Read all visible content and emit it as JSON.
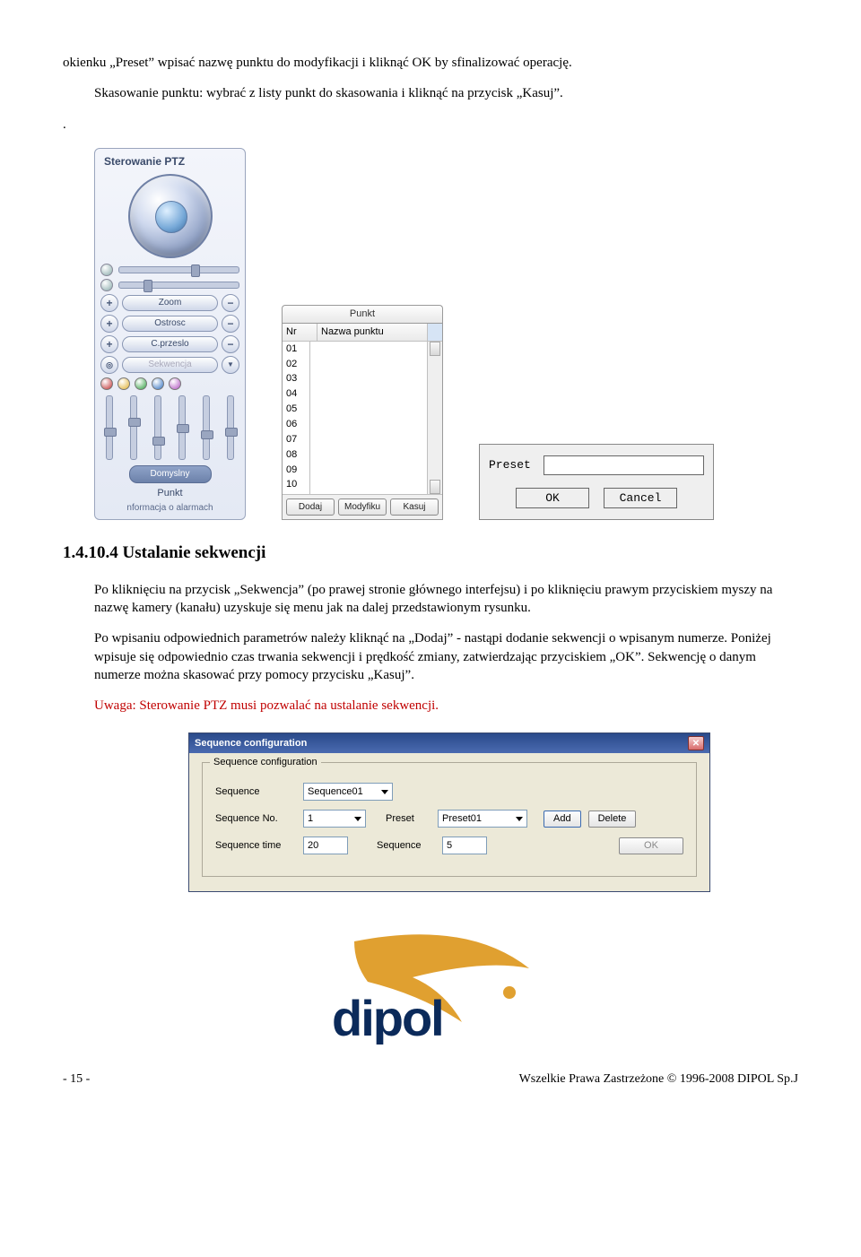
{
  "text": {
    "intro1": "okienku „Preset” wpisać nazwę punktu do modyfikacji i kliknąć OK by sfinalizować operację.",
    "intro2": "Skasowanie punktu: wybrać z listy punkt do skasowania i kliknąć na przycisk „Kasuj”.",
    "dot": ".",
    "heading": "1.4.10.4    Ustalanie sekwencji",
    "body1": "Po kliknięciu na przycisk „Sekwencja” (po prawej stronie głównego interfejsu) i po kliknięciu prawym przyciskiem myszy na nazwę kamery (kanału) uzyskuje się menu jak na dalej przedstawionym rysunku.",
    "body2": "Po wpisaniu odpowiednich parametrów należy kliknąć na „Dodaj” - nastąpi dodanie sekwencji o wpisanym numerze. Poniżej wpisuje się odpowiednio czas trwania sekwencji i prędkość zmiany, zatwierdzając przyciskiem „OK”. Sekwencję o danym numerze można skasować przy pomocy przycisku „Kasuj”.",
    "warn": "Uwaga: Sterowanie PTZ musi pozwalać na ustalanie sekwencji.",
    "footer_left": "- 15 -",
    "footer_right": "Wszelkie Prawa Zastrzeżone © 1996-2008 DIPOL Sp.J"
  },
  "ptz": {
    "title": "Sterowanie PTZ",
    "zoom": "Zoom",
    "ostrosc": "Ostrosc",
    "przeslo": "C.przeslo",
    "sekwencja": "Sekwencja",
    "domyslny": "Domyslny",
    "punkt": "Punkt",
    "alarm": "nformacja o alarmach",
    "slider1_pos": "60%",
    "slider2_pos": "20%",
    "dot_colors": [
      "#c03030",
      "#e0b030",
      "#30a040",
      "#3070c0",
      "#b050c0"
    ],
    "vslider_offsets": [
      "50%",
      "35%",
      "65%",
      "45%",
      "55%",
      "50%"
    ]
  },
  "punkt_panel": {
    "tab": "Punkt",
    "col_nr": "Nr",
    "col_name": "Nazwa punktu",
    "rows": [
      "01",
      "02",
      "03",
      "04",
      "05",
      "06",
      "07",
      "08",
      "09",
      "10"
    ],
    "btn_add": "Dodaj",
    "btn_mod": "Modyfiku",
    "btn_del": "Kasuj"
  },
  "preset_dialog": {
    "label": "Preset",
    "value": "",
    "ok": "OK",
    "cancel": "Cancel"
  },
  "seq_dialog": {
    "title": "Sequence configuration",
    "legend": "Sequence configuration",
    "seq_label": "Sequence",
    "seq_value": "Sequence01",
    "seqno_label": "Sequence No.",
    "seqno_value": "1",
    "preset_label": "Preset",
    "preset_value": "Preset01",
    "add": "Add",
    "delete": "Delete",
    "time_label": "Sequence time",
    "time_value": "20",
    "speed_label": "Sequence",
    "speed_value": "5",
    "ok": "OK"
  },
  "logo": {
    "text": "dipol",
    "text_color": "#0b2a5a",
    "swoosh_color": "#e0a030",
    "dot_color": "#e0a030"
  }
}
